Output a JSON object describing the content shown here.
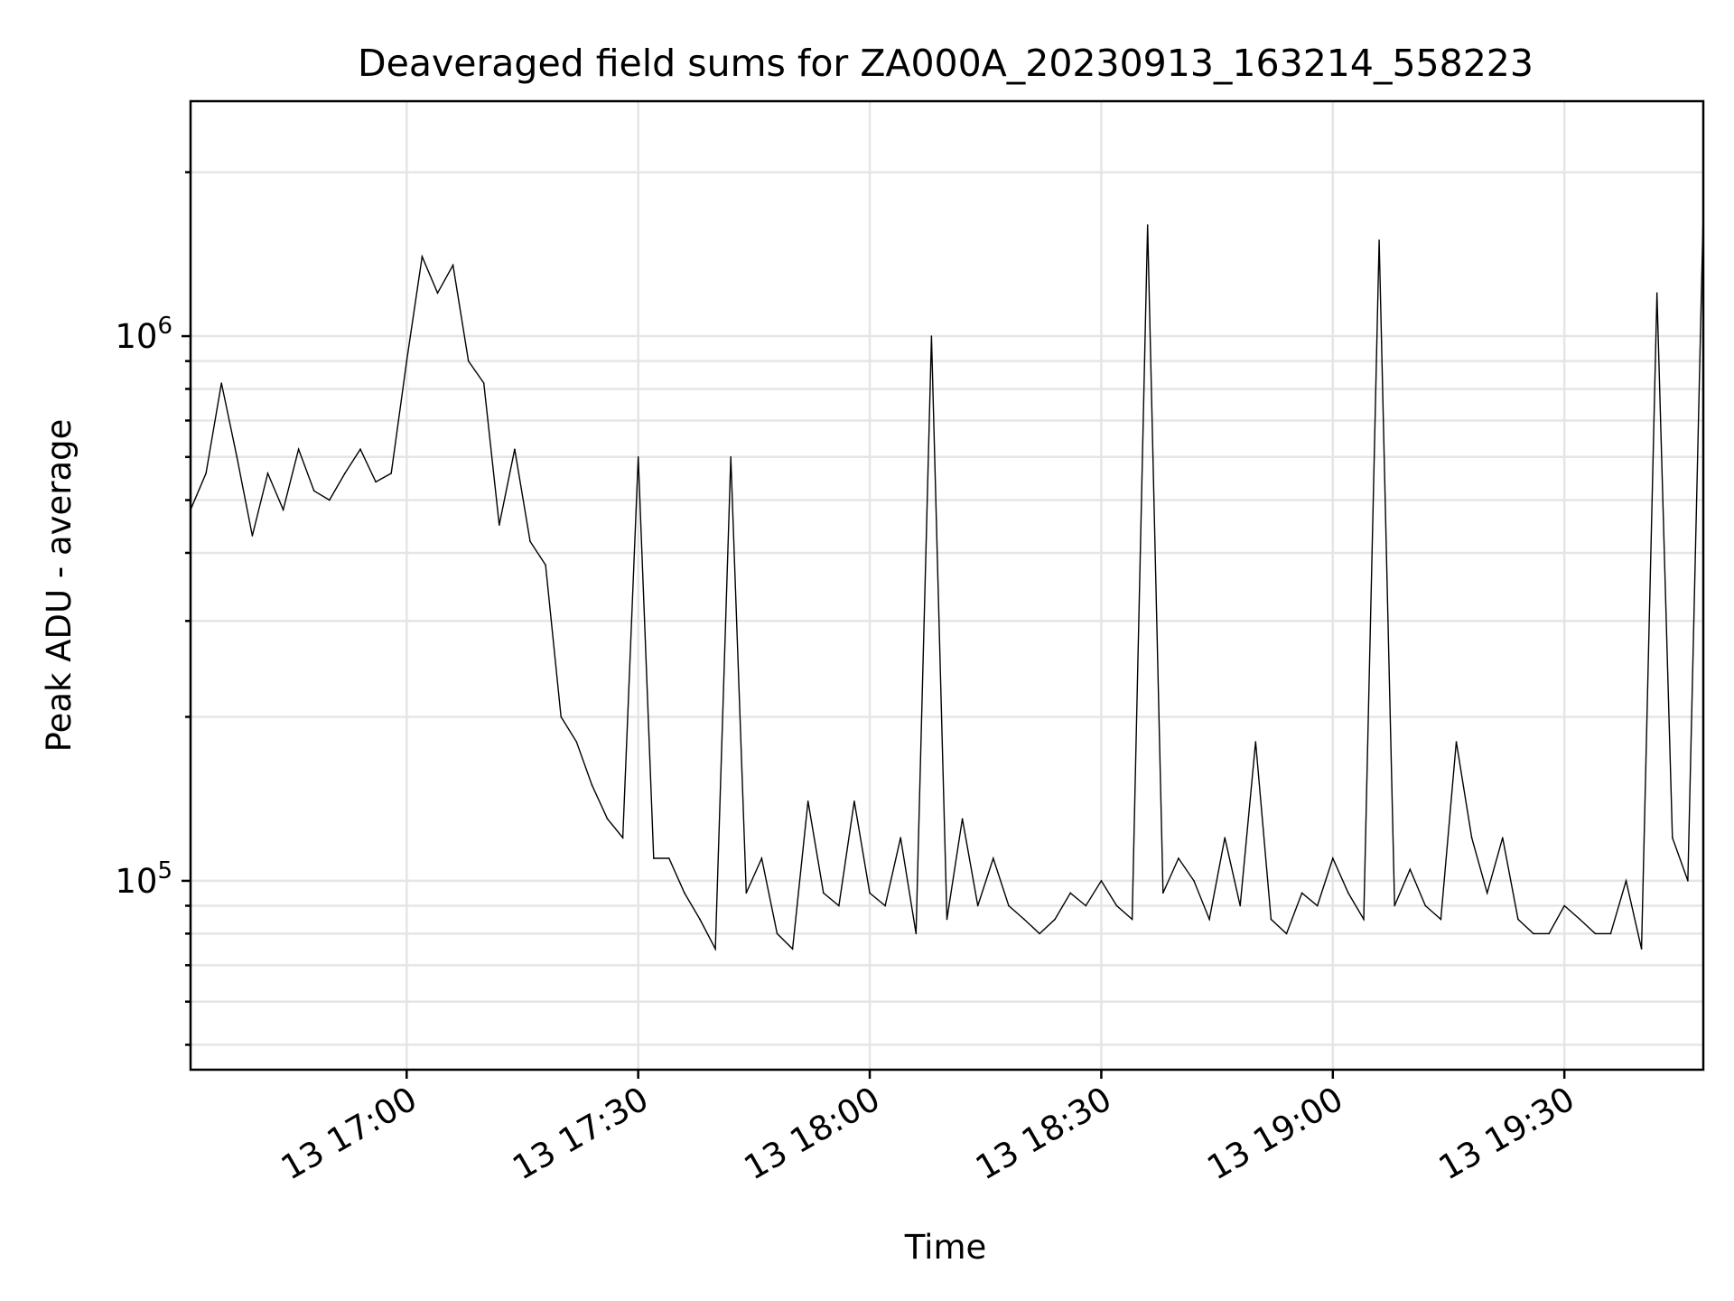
{
  "chart_data": {
    "type": "line",
    "title": "Deaveraged field sums for ZA000A_20230913_163214_558223",
    "xlabel": "Time",
    "ylabel": "Peak ADU - average",
    "y_scale": "log",
    "x_range": [
      "2023-09-13 16:32",
      "2023-09-13 19:48"
    ],
    "y_range": [
      45000,
      2700000
    ],
    "grid": "on",
    "x_ticks": [
      {
        "value": "2023-09-13 17:00",
        "label": "13 17:00"
      },
      {
        "value": "2023-09-13 17:30",
        "label": "13 17:30"
      },
      {
        "value": "2023-09-13 18:00",
        "label": "13 18:00"
      },
      {
        "value": "2023-09-13 18:30",
        "label": "13 18:30"
      },
      {
        "value": "2023-09-13 19:00",
        "label": "13 19:00"
      },
      {
        "value": "2023-09-13 19:30",
        "label": "13 19:30"
      }
    ],
    "y_ticks": [
      {
        "value": 100000,
        "base": "10",
        "exp": "5"
      },
      {
        "value": 1000000,
        "base": "10",
        "exp": "6"
      }
    ],
    "series": [
      {
        "color": "#000000",
        "x": [
          "2023-09-13 16:32",
          "2023-09-13 16:34",
          "2023-09-13 16:36",
          "2023-09-13 16:38",
          "2023-09-13 16:40",
          "2023-09-13 16:42",
          "2023-09-13 16:44",
          "2023-09-13 16:46",
          "2023-09-13 16:48",
          "2023-09-13 16:50",
          "2023-09-13 16:52",
          "2023-09-13 16:54",
          "2023-09-13 16:56",
          "2023-09-13 16:58",
          "2023-09-13 17:00",
          "2023-09-13 17:02",
          "2023-09-13 17:04",
          "2023-09-13 17:06",
          "2023-09-13 17:08",
          "2023-09-13 17:10",
          "2023-09-13 17:12",
          "2023-09-13 17:14",
          "2023-09-13 17:16",
          "2023-09-13 17:18",
          "2023-09-13 17:20",
          "2023-09-13 17:22",
          "2023-09-13 17:24",
          "2023-09-13 17:26",
          "2023-09-13 17:28",
          "2023-09-13 17:30",
          "2023-09-13 17:32",
          "2023-09-13 17:34",
          "2023-09-13 17:36",
          "2023-09-13 17:38",
          "2023-09-13 17:40",
          "2023-09-13 17:42",
          "2023-09-13 17:44",
          "2023-09-13 17:46",
          "2023-09-13 17:48",
          "2023-09-13 17:50",
          "2023-09-13 17:52",
          "2023-09-13 17:54",
          "2023-09-13 17:56",
          "2023-09-13 17:58",
          "2023-09-13 18:00",
          "2023-09-13 18:02",
          "2023-09-13 18:04",
          "2023-09-13 18:06",
          "2023-09-13 18:08",
          "2023-09-13 18:10",
          "2023-09-13 18:12",
          "2023-09-13 18:14",
          "2023-09-13 18:16",
          "2023-09-13 18:18",
          "2023-09-13 18:20",
          "2023-09-13 18:22",
          "2023-09-13 18:24",
          "2023-09-13 18:26",
          "2023-09-13 18:28",
          "2023-09-13 18:30",
          "2023-09-13 18:32",
          "2023-09-13 18:34",
          "2023-09-13 18:36",
          "2023-09-13 18:38",
          "2023-09-13 18:40",
          "2023-09-13 18:42",
          "2023-09-13 18:44",
          "2023-09-13 18:46",
          "2023-09-13 18:48",
          "2023-09-13 18:50",
          "2023-09-13 18:52",
          "2023-09-13 18:54",
          "2023-09-13 18:56",
          "2023-09-13 18:58",
          "2023-09-13 19:00",
          "2023-09-13 19:02",
          "2023-09-13 19:04",
          "2023-09-13 19:06",
          "2023-09-13 19:08",
          "2023-09-13 19:10",
          "2023-09-13 19:12",
          "2023-09-13 19:14",
          "2023-09-13 19:16",
          "2023-09-13 19:18",
          "2023-09-13 19:20",
          "2023-09-13 19:22",
          "2023-09-13 19:24",
          "2023-09-13 19:26",
          "2023-09-13 19:28",
          "2023-09-13 19:30",
          "2023-09-13 19:32",
          "2023-09-13 19:34",
          "2023-09-13 19:36",
          "2023-09-13 19:38",
          "2023-09-13 19:40",
          "2023-09-13 19:42",
          "2023-09-13 19:44",
          "2023-09-13 19:46",
          "2023-09-13 19:48"
        ],
        "y": [
          480000,
          560000,
          820000,
          600000,
          430000,
          560000,
          480000,
          620000,
          520000,
          500000,
          560000,
          620000,
          540000,
          560000,
          900000,
          1400000,
          1200000,
          1350000,
          900000,
          820000,
          450000,
          620000,
          420000,
          380000,
          200000,
          180000,
          150000,
          130000,
          120000,
          600000,
          110000,
          110000,
          95000,
          85000,
          75000,
          600000,
          95000,
          110000,
          80000,
          75000,
          140000,
          95000,
          90000,
          140000,
          95000,
          90000,
          120000,
          80000,
          1000000,
          85000,
          130000,
          90000,
          110000,
          90000,
          85000,
          80000,
          85000,
          95000,
          90000,
          100000,
          90000,
          85000,
          1600000,
          95000,
          110000,
          100000,
          85000,
          120000,
          90000,
          180000,
          85000,
          80000,
          95000,
          90000,
          110000,
          95000,
          85000,
          1500000,
          90000,
          105000,
          90000,
          85000,
          180000,
          120000,
          95000,
          120000,
          85000,
          80000,
          80000,
          90000,
          85000,
          80000,
          80000,
          100000,
          75000,
          1200000,
          120000,
          100000,
          1700000
        ]
      }
    ]
  }
}
